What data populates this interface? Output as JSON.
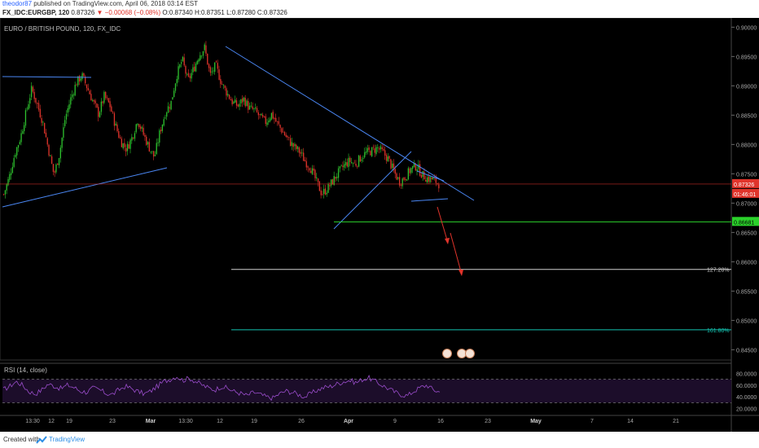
{
  "header": {
    "author": "theodor87",
    "published": "published on TradingView.com, April 06, 2018 03:14 EST",
    "symbol": "FX_IDC:EURGBP, 120",
    "last": "0.87326",
    "change": "▼ −0.00068 (−0.08%)",
    "ohlc": "O:0.87340 H:0.87351 L:0.87280 C:0.87326"
  },
  "footer": {
    "created_with": "Created with",
    "brand": "TradingView"
  },
  "chart_data": {
    "type": "candlestick",
    "title": "EURO / BRITISH POUND, 120, FX_IDC",
    "y_ticks": [
      0.9,
      0.895,
      0.89,
      0.885,
      0.88,
      0.875,
      0.87,
      0.865,
      0.86,
      0.855,
      0.85,
      0.845
    ],
    "y_tick_labels": [
      "0.90000",
      "0.89500",
      "0.89000",
      "0.88500",
      "0.88000",
      "0.87500",
      "0.87000",
      "0.86500",
      "0.86000",
      "0.85500",
      "0.85000",
      "0.84500"
    ],
    "ylim": [
      0.8438,
      0.9013
    ],
    "x_tick_labels": [
      "13:30",
      "12",
      "19",
      "23",
      "Mar",
      "13:30",
      "12",
      "19",
      "26",
      "Apr",
      "9",
      "16",
      "23",
      "May",
      "7",
      "14",
      "21"
    ],
    "x_tick_bold": [
      false,
      false,
      false,
      false,
      true,
      false,
      false,
      false,
      false,
      true,
      false,
      false,
      false,
      true,
      false,
      false,
      false
    ],
    "last_price": {
      "label": "0.87326",
      "value": 0.87326,
      "color": "#e0342b"
    },
    "countdown": {
      "label": "01:46:01",
      "color": "#e0342b"
    },
    "support": {
      "label": "0.86681",
      "value": 0.86681,
      "color": "#2bd22b"
    },
    "fib_levels": [
      {
        "label": "127.20%",
        "value": 0.8587,
        "color": "#cfcfcf"
      },
      {
        "label": "161.80%",
        "value": 0.8484,
        "color": "#14c2b0"
      }
    ],
    "candles_close_path": [
      0.8715,
      0.8745,
      0.8785,
      0.8812,
      0.8855,
      0.8895,
      0.8868,
      0.8838,
      0.8792,
      0.8748,
      0.8785,
      0.8845,
      0.8878,
      0.8905,
      0.8918,
      0.8896,
      0.8873,
      0.8852,
      0.8882,
      0.8867,
      0.8833,
      0.8805,
      0.8792,
      0.8812,
      0.8842,
      0.8818,
      0.8796,
      0.8778,
      0.8822,
      0.8855,
      0.8872,
      0.8918,
      0.8945,
      0.8908,
      0.8928,
      0.8952,
      0.8965,
      0.8918,
      0.8935,
      0.8905,
      0.8888,
      0.8872,
      0.8866,
      0.8878,
      0.8862,
      0.8858,
      0.8846,
      0.8838,
      0.8852,
      0.8836,
      0.8822,
      0.8808,
      0.8796,
      0.8788,
      0.8772,
      0.876,
      0.8738,
      0.8716,
      0.8724,
      0.8738,
      0.8752,
      0.8764,
      0.8772,
      0.8766,
      0.8778,
      0.8786,
      0.8789,
      0.8794,
      0.8786,
      0.8774,
      0.8752,
      0.8736,
      0.8745,
      0.8758,
      0.8764,
      0.8748,
      0.8742,
      0.874,
      0.8733
    ],
    "rsi": {
      "label": "RSI (14, close)",
      "y_tick_labels": [
        "80.0000",
        "60.0000",
        "40.0000",
        "20.0000"
      ],
      "y_ticks": [
        80,
        60,
        40,
        20
      ],
      "ylim": [
        14,
        86
      ],
      "bands": [
        70,
        30
      ],
      "path": [
        52,
        58,
        66,
        60,
        49,
        45,
        52,
        62,
        58,
        54,
        60,
        56,
        50,
        48,
        55,
        52,
        46,
        44,
        52,
        58,
        54,
        49,
        45,
        50,
        58,
        66,
        70,
        75,
        68,
        72,
        66,
        60,
        55,
        52,
        58,
        54,
        49,
        46,
        42,
        48,
        44,
        40,
        38,
        45,
        50,
        48,
        44,
        40,
        46,
        52,
        56,
        58,
        62,
        66,
        68,
        64,
        70,
        72,
        66,
        60,
        54,
        48,
        44,
        42,
        50,
        56,
        60,
        52,
        48
      ]
    }
  },
  "colors": {
    "bg": "#000000",
    "up": "#2ec22e",
    "down": "#e0342b",
    "trend": "#4a86f2",
    "rsi_line": "#9b4dcc",
    "rsi_fill": "#1c0d2a"
  }
}
